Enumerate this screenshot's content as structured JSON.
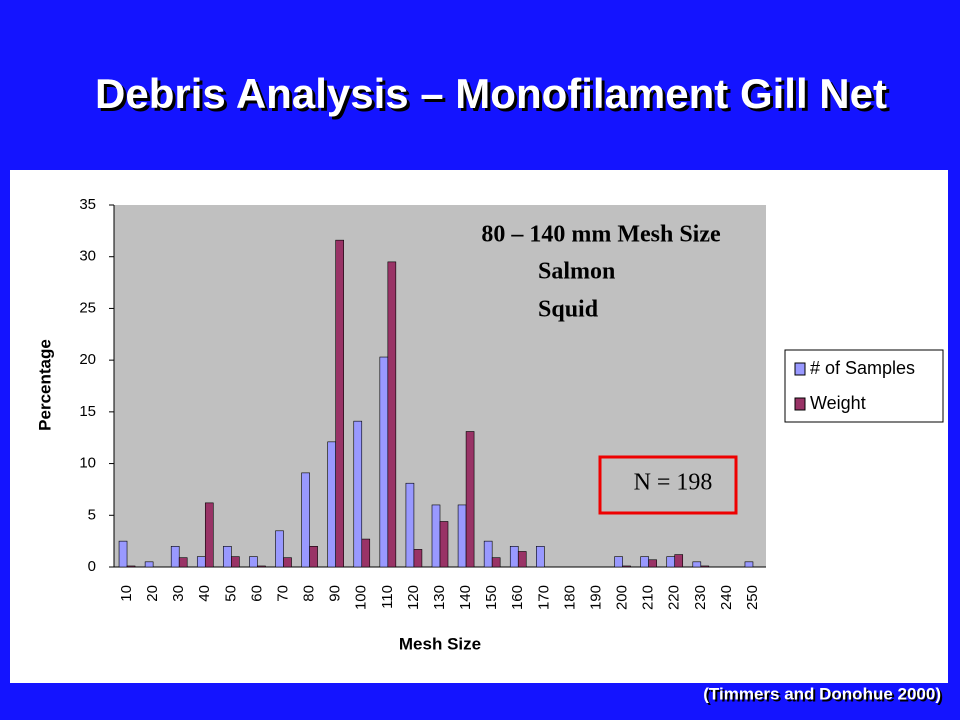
{
  "slide": {
    "title": "Debris Analysis – Monofilament Gill Net",
    "citation": "(Timmers and Donohue 2000)"
  },
  "chart_data": {
    "type": "bar",
    "categories": [
      "10",
      "20",
      "30",
      "40",
      "50",
      "60",
      "70",
      "80",
      "90",
      "100",
      "110",
      "120",
      "130",
      "140",
      "150",
      "160",
      "170",
      "180",
      "190",
      "200",
      "210",
      "220",
      "230",
      "240",
      "250"
    ],
    "series": [
      {
        "name": "# of Samples",
        "color": "#9999ff",
        "values": [
          2.5,
          0.5,
          2,
          1,
          2,
          1,
          3.5,
          9.1,
          12.1,
          14.1,
          20.3,
          8.1,
          6,
          6,
          2.5,
          2,
          2,
          0,
          0,
          1,
          1,
          1,
          0.5,
          0,
          0.5
        ]
      },
      {
        "name": "Weight",
        "color": "#993366",
        "values": [
          0.1,
          0,
          0.9,
          6.2,
          1,
          0.1,
          0.9,
          2,
          31.6,
          2.7,
          29.5,
          1.7,
          4.4,
          13.1,
          0.9,
          1.5,
          0,
          0,
          0,
          0.1,
          0.7,
          1.2,
          0.1,
          0,
          0
        ]
      }
    ],
    "ylim": [
      0,
      35
    ],
    "yticks": [
      0,
      5,
      10,
      15,
      20,
      25,
      30,
      35
    ],
    "grid": false,
    "x_label": "Mesh Size",
    "y_label": "Percentage",
    "annotations": [
      "80 – 140 mm Mesh Size",
      "Salmon",
      "Squid",
      "N = 198"
    ]
  }
}
